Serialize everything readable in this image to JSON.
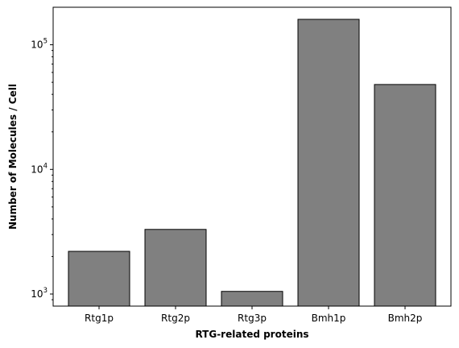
{
  "chart_data": {
    "type": "bar",
    "categories": [
      "Rtg1p",
      "Rtg2p",
      "Rtg3p",
      "Bmh1p",
      "Bmh2p"
    ],
    "values": [
      2200,
      3300,
      1050,
      160000,
      48000
    ],
    "xlabel": "RTG-related proteins",
    "ylabel": "Number of Molecules / Cell",
    "yscale": "log",
    "ylim": [
      800,
      200000
    ],
    "yticks": [
      1000,
      10000,
      100000
    ],
    "ytick_labels": [
      {
        "base": "10",
        "exp": "3"
      },
      {
        "base": "10",
        "exp": "4"
      },
      {
        "base": "10",
        "exp": "5"
      }
    ],
    "bar_color": "#808080",
    "edge_color": "#000000",
    "grid": false,
    "legend": false
  }
}
